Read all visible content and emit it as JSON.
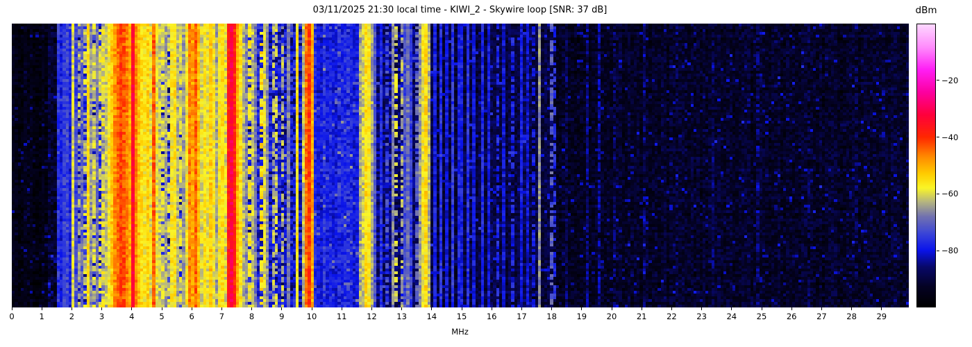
{
  "chart_data": {
    "type": "heatmap",
    "subtype": "radio-spectrum-waterfall",
    "title": "03/11/2025 21:30 local time - KIWI_2 - Skywire loop [SNR: 37 dB]",
    "xlabel": "MHz",
    "x_range": [
      0,
      29.9
    ],
    "x_ticks": [
      0,
      1,
      2,
      3,
      4,
      5,
      6,
      7,
      8,
      9,
      10,
      11,
      12,
      13,
      14,
      15,
      16,
      17,
      18,
      19,
      20,
      21,
      22,
      23,
      24,
      25,
      26,
      27,
      28,
      29
    ],
    "y_ticks": [],
    "grid": {
      "cols": 300,
      "rows": 102
    },
    "seed": 20250311,
    "colorbar": {
      "label": "dBm",
      "range": [
        -100,
        0
      ],
      "ticks": [
        -20,
        -40,
        -60,
        -80
      ],
      "tick_labels": [
        "−20",
        "−40",
        "−60",
        "−80"
      ],
      "colormap_stops": [
        [
          0.0,
          [
            0,
            0,
            0
          ]
        ],
        [
          0.07,
          [
            4,
            2,
            36
          ]
        ],
        [
          0.14,
          [
            8,
            8,
            105
          ]
        ],
        [
          0.2,
          [
            10,
            20,
            235
          ]
        ],
        [
          0.26,
          [
            60,
            70,
            215
          ]
        ],
        [
          0.32,
          [
            115,
            115,
            175
          ]
        ],
        [
          0.37,
          [
            180,
            180,
            130
          ]
        ],
        [
          0.42,
          [
            250,
            245,
            40
          ]
        ],
        [
          0.47,
          [
            255,
            205,
            0
          ]
        ],
        [
          0.53,
          [
            255,
            140,
            0
          ]
        ],
        [
          0.6,
          [
            255,
            40,
            0
          ]
        ],
        [
          0.68,
          [
            255,
            0,
            60
          ]
        ],
        [
          0.76,
          [
            252,
            0,
            160
          ]
        ],
        [
          0.84,
          [
            255,
            30,
            245
          ]
        ],
        [
          0.92,
          [
            255,
            140,
            252
          ]
        ],
        [
          1.0,
          [
            253,
            215,
            255
          ]
        ]
      ]
    },
    "region_fields": [
      "f0_mhz",
      "f1_mhz",
      "base_dbm",
      "noise_db"
    ],
    "background_regions": [
      [
        0.0,
        1.2,
        -96,
        3
      ],
      [
        1.2,
        1.5,
        -92,
        5
      ],
      [
        1.5,
        2.0,
        -86,
        6
      ],
      [
        2.0,
        3.3,
        -79,
        7
      ],
      [
        3.3,
        4.0,
        -70,
        8
      ],
      [
        4.0,
        5.0,
        -75,
        8
      ],
      [
        5.0,
        7.1,
        -78,
        8
      ],
      [
        7.1,
        8.2,
        -79,
        7
      ],
      [
        8.2,
        10.1,
        -80,
        7
      ],
      [
        10.1,
        11.6,
        -79,
        3.5
      ],
      [
        11.6,
        12.2,
        -82,
        5
      ],
      [
        12.2,
        14.0,
        -86,
        5
      ],
      [
        14.0,
        18.0,
        -90,
        4
      ],
      [
        18.0,
        29.95,
        -93,
        4
      ]
    ],
    "carrier_fields": [
      "freq_mhz",
      "width_mhz",
      "level_dbm",
      "duty"
    ],
    "carriers": [
      [
        1.54,
        0.05,
        -76
      ],
      [
        1.62,
        0.04,
        -79
      ],
      [
        1.71,
        0.05,
        -75
      ],
      [
        1.78,
        0.04,
        -78
      ],
      [
        1.87,
        0.05,
        -74
      ],
      [
        1.94,
        0.04,
        -79
      ],
      [
        2.07,
        0.05,
        -60
      ],
      [
        2.17,
        0.04,
        -74
      ],
      [
        2.26,
        0.05,
        -64,
        0.7
      ],
      [
        2.33,
        0.04,
        -70
      ],
      [
        2.42,
        0.05,
        -62,
        0.6
      ],
      [
        2.51,
        0.05,
        -57
      ],
      [
        2.57,
        0.06,
        -56
      ],
      [
        2.65,
        0.04,
        -66
      ],
      [
        2.73,
        0.05,
        -61,
        0.8
      ],
      [
        2.82,
        0.04,
        -68
      ],
      [
        2.92,
        0.05,
        -60,
        0.6
      ],
      [
        3.0,
        0.04,
        -66
      ],
      [
        3.08,
        0.05,
        -59,
        0.7
      ],
      [
        3.17,
        0.05,
        -62
      ],
      [
        3.25,
        0.06,
        -57
      ],
      [
        3.35,
        0.09,
        -53
      ],
      [
        3.44,
        0.1,
        -48
      ],
      [
        3.53,
        0.12,
        -44
      ],
      [
        3.62,
        0.12,
        -41
      ],
      [
        3.72,
        0.12,
        -43
      ],
      [
        3.81,
        0.1,
        -46
      ],
      [
        3.9,
        0.09,
        -50
      ],
      [
        3.97,
        0.07,
        -54
      ],
      [
        4.02,
        0.05,
        -34
      ],
      [
        4.1,
        0.07,
        -50
      ],
      [
        4.18,
        0.08,
        -47
      ],
      [
        4.27,
        0.07,
        -52
      ],
      [
        4.37,
        0.07,
        -55
      ],
      [
        4.45,
        0.07,
        -57
      ],
      [
        4.55,
        0.08,
        -54
      ],
      [
        4.63,
        0.06,
        -59
      ],
      [
        4.7,
        0.07,
        -44
      ],
      [
        4.78,
        0.06,
        -56
      ],
      [
        4.88,
        0.06,
        -59
      ],
      [
        4.97,
        0.05,
        -62
      ],
      [
        5.07,
        0.05,
        -60,
        0.8
      ],
      [
        5.17,
        0.05,
        -64
      ],
      [
        5.28,
        0.05,
        -61,
        0.7
      ],
      [
        5.38,
        0.06,
        -57
      ],
      [
        5.45,
        0.05,
        -56
      ],
      [
        5.55,
        0.05,
        -63
      ],
      [
        5.65,
        0.05,
        -60,
        0.8
      ],
      [
        5.75,
        0.05,
        -65
      ],
      [
        5.85,
        0.06,
        -58
      ],
      [
        5.93,
        0.06,
        -46
      ],
      [
        6.03,
        0.07,
        -49
      ],
      [
        6.12,
        0.08,
        -44
      ],
      [
        6.22,
        0.06,
        -52
      ],
      [
        6.32,
        0.05,
        -60
      ],
      [
        6.4,
        0.05,
        -56
      ],
      [
        6.5,
        0.05,
        -59
      ],
      [
        6.6,
        0.08,
        -53
      ],
      [
        6.68,
        0.05,
        -58
      ],
      [
        6.8,
        0.05,
        -64
      ],
      [
        6.9,
        0.06,
        -57
      ],
      [
        7.0,
        0.06,
        -55
      ],
      [
        7.08,
        0.05,
        -60
      ],
      [
        7.21,
        0.09,
        -38
      ],
      [
        7.31,
        0.12,
        -32
      ],
      [
        7.42,
        0.08,
        -39
      ],
      [
        7.52,
        0.05,
        -50
      ],
      [
        7.62,
        0.04,
        -56
      ],
      [
        7.74,
        0.06,
        -63
      ],
      [
        7.85,
        0.05,
        -67
      ],
      [
        7.95,
        0.05,
        -58,
        0.7
      ],
      [
        8.05,
        0.04,
        -62
      ],
      [
        8.15,
        0.04,
        -68
      ],
      [
        8.3,
        0.06,
        -55,
        0.6
      ],
      [
        8.4,
        0.05,
        -60
      ],
      [
        8.55,
        0.04,
        -66
      ],
      [
        8.7,
        0.04,
        -63,
        0.7
      ],
      [
        8.87,
        0.05,
        -61,
        0.6
      ],
      [
        9.05,
        0.05,
        -63,
        0.6
      ],
      [
        9.2,
        0.04,
        -68
      ],
      [
        9.55,
        0.05,
        -56
      ],
      [
        9.68,
        0.05,
        -62
      ],
      [
        9.8,
        0.06,
        -45
      ],
      [
        9.88,
        0.1,
        -41
      ],
      [
        9.97,
        0.05,
        -50
      ],
      [
        10.06,
        0.06,
        -54
      ],
      [
        10.4,
        0.04,
        -75,
        0.5
      ],
      [
        10.9,
        0.04,
        -76,
        0.5
      ],
      [
        11.2,
        0.04,
        -74,
        0.5
      ],
      [
        11.65,
        0.06,
        -64
      ],
      [
        11.76,
        0.05,
        -61
      ],
      [
        11.86,
        0.06,
        -55
      ],
      [
        11.94,
        0.06,
        -57
      ],
      [
        12.05,
        0.05,
        -64
      ],
      [
        12.15,
        0.04,
        -72
      ],
      [
        12.35,
        0.03,
        -77
      ],
      [
        12.55,
        0.03,
        -74,
        0.6
      ],
      [
        12.7,
        0.04,
        -67
      ],
      [
        12.85,
        0.04,
        -61,
        0.55
      ],
      [
        12.97,
        0.04,
        -64,
        0.6
      ],
      [
        13.1,
        0.03,
        -73
      ],
      [
        13.22,
        0.04,
        -69
      ],
      [
        13.35,
        0.03,
        -75
      ],
      [
        13.5,
        0.04,
        -70,
        0.7
      ],
      [
        13.62,
        0.04,
        -65
      ],
      [
        13.75,
        0.05,
        -58
      ],
      [
        13.84,
        0.05,
        -55
      ],
      [
        13.94,
        0.04,
        -63
      ],
      [
        14.15,
        0.03,
        -79
      ],
      [
        14.35,
        0.03,
        -77
      ],
      [
        14.55,
        0.03,
        -80
      ],
      [
        14.75,
        0.03,
        -76
      ],
      [
        14.95,
        0.03,
        -79
      ],
      [
        15.15,
        0.03,
        -77
      ],
      [
        15.4,
        0.03,
        -80
      ],
      [
        15.65,
        0.03,
        -78
      ],
      [
        15.9,
        0.03,
        -80
      ],
      [
        16.15,
        0.03,
        -78,
        0.7
      ],
      [
        16.4,
        0.03,
        -81
      ],
      [
        16.7,
        0.03,
        -79,
        0.7
      ],
      [
        16.95,
        0.03,
        -80
      ],
      [
        17.2,
        0.03,
        -81
      ],
      [
        17.4,
        0.03,
        -80,
        0.6
      ],
      [
        17.62,
        0.03,
        -66
      ],
      [
        17.95,
        0.03,
        -71,
        0.55
      ],
      [
        18.05,
        0.03,
        -77,
        0.5
      ],
      [
        18.5,
        0.03,
        -87,
        0.6
      ],
      [
        19.2,
        0.06,
        -85,
        0.8
      ],
      [
        19.6,
        0.06,
        -84,
        0.8
      ],
      [
        20.1,
        0.04,
        -87,
        0.6
      ],
      [
        21.1,
        0.03,
        -86,
        0.6
      ],
      [
        22.2,
        0.03,
        -88,
        0.5
      ],
      [
        23.4,
        0.03,
        -87,
        0.5
      ],
      [
        24.9,
        0.03,
        -86,
        0.6
      ],
      [
        26.6,
        0.03,
        -88,
        0.5
      ],
      [
        28.2,
        0.03,
        -88,
        0.5
      ]
    ],
    "burst_fields": [
      "f0_mhz",
      "f1_mhz",
      "row0",
      "row1",
      "level_dbm"
    ],
    "bursts": [
      [
        2.55,
        7.0,
        15,
        16,
        -64
      ],
      [
        2.45,
        6.9,
        18,
        19,
        -62
      ],
      [
        2.6,
        5.2,
        20,
        20,
        -69
      ]
    ]
  }
}
